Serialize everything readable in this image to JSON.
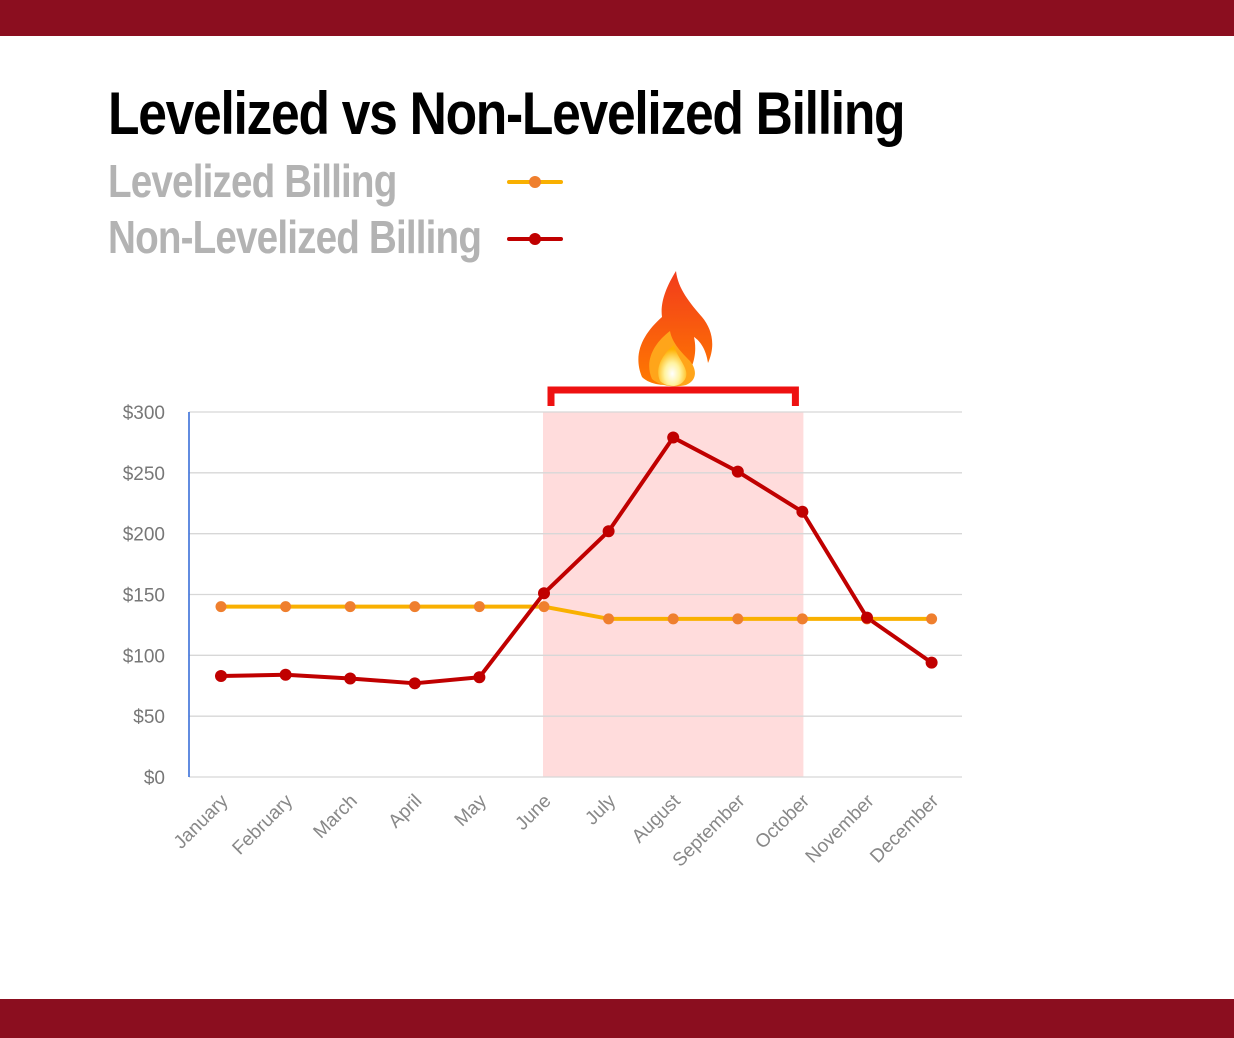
{
  "colors": {
    "frame_bar": "#8b0e1f",
    "levelized": "#f9b000",
    "levelized_marker": "#ef7f2e",
    "non_levelized": "#c00000",
    "highlight_fill": "#ffdcdc",
    "bracket": "#ee1111",
    "grid": "#d7d7d7",
    "y_axis": "#3a6fd8"
  },
  "icons": {
    "highlight_marker": "fire-icon"
  },
  "chart_data": {
    "type": "line",
    "title": "Levelized vs Non-Levelized Billing",
    "categories": [
      "January",
      "February",
      "March",
      "April",
      "May",
      "June",
      "July",
      "August",
      "September",
      "October",
      "November",
      "December"
    ],
    "series": [
      {
        "name": "Levelized Billing",
        "values": [
          140,
          140,
          140,
          140,
          140,
          140,
          130,
          130,
          130,
          130,
          130,
          130
        ]
      },
      {
        "name": "Non-Levelized Billing",
        "values": [
          83,
          84,
          81,
          77,
          82,
          151,
          202,
          279,
          251,
          218,
          131,
          94
        ]
      }
    ],
    "y_ticks": [
      "$0",
      "$50",
      "$100",
      "$150",
      "$200",
      "$250",
      "$300"
    ],
    "ylim": [
      0,
      300
    ],
    "grid": true,
    "legend_position": "top-left",
    "highlight": {
      "from": "June",
      "to": "October"
    }
  }
}
